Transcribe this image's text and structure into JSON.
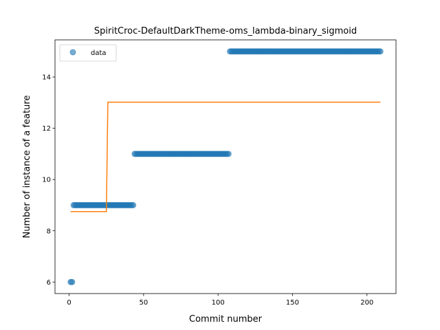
{
  "chart_data": {
    "type": "scatter",
    "title": "SpiritCroc-DefaultDarkTheme-oms_lambda-binary_sigmoid",
    "xlabel": "Commit number",
    "ylabel": "Number of instance of a feature",
    "xlim": [
      -9.5,
      219.5
    ],
    "ylim": [
      5.55,
      15.45
    ],
    "xticks": [
      0,
      50,
      100,
      150,
      200
    ],
    "yticks": [
      6,
      8,
      10,
      12,
      14
    ],
    "legend": {
      "placement": "upper-left",
      "entries": [
        "data"
      ]
    },
    "series": [
      {
        "name": "data",
        "kind": "scatter",
        "color": "#1f77b4",
        "segments": [
          {
            "x_start": 1,
            "x_end": 2,
            "y": 6
          },
          {
            "x_start": 3,
            "x_end": 43,
            "y": 9
          },
          {
            "x_start": 44,
            "x_end": 107,
            "y": 11
          },
          {
            "x_start": 108,
            "x_end": 209,
            "y": 15
          }
        ]
      },
      {
        "kind": "line",
        "color": "#ff7f0e",
        "x": [
          1,
          25,
          26,
          209
        ],
        "y": [
          8.75,
          8.75,
          13.02,
          13.02
        ]
      }
    ]
  }
}
